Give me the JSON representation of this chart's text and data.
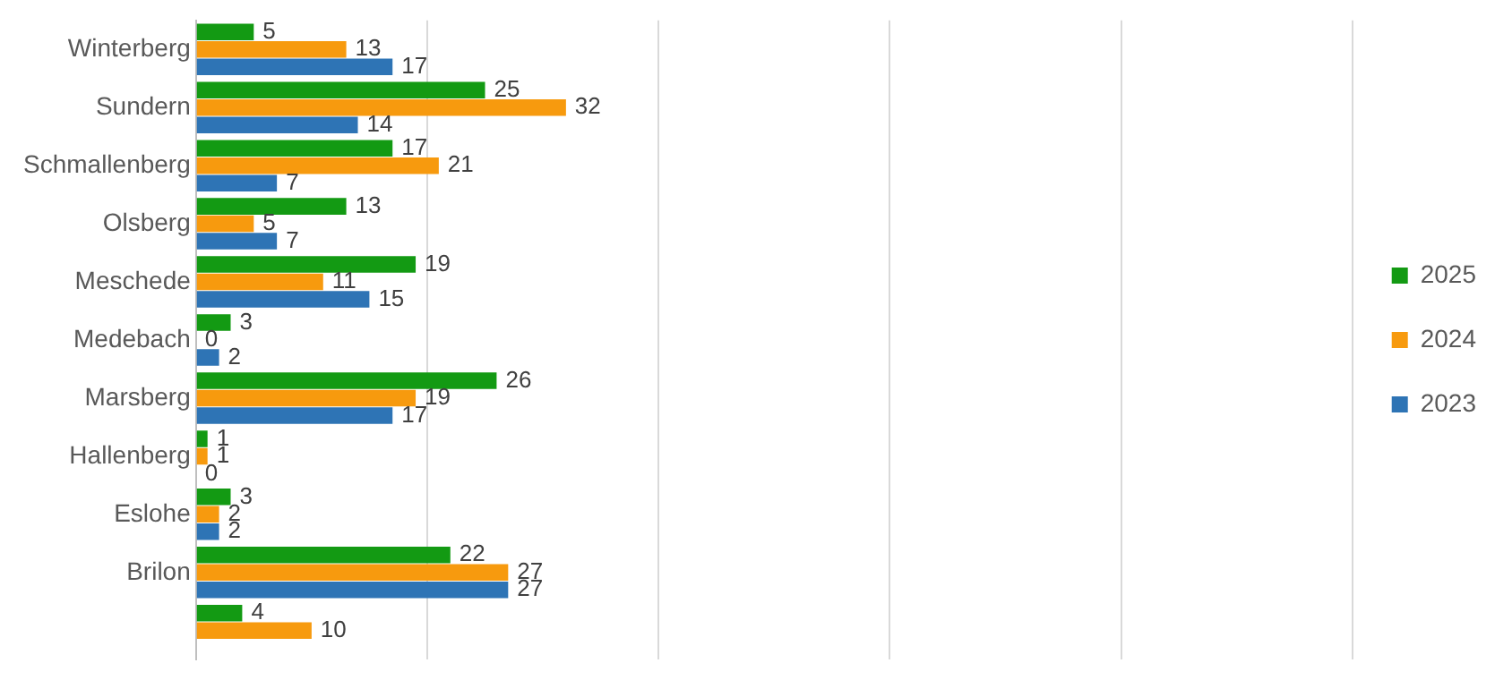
{
  "chart_data": {
    "type": "bar",
    "orientation": "horizontal",
    "categories": [
      "Winterberg",
      "Sundern",
      "Schmallenberg",
      "Olsberg",
      "Meschede",
      "Medebach",
      "Marsberg",
      "Hallenberg",
      "Eslohe",
      "Brilon",
      null
    ],
    "series": [
      {
        "name": "2025",
        "color": "#139a13",
        "values": [
          5,
          25,
          17,
          13,
          19,
          3,
          26,
          1,
          3,
          22,
          4
        ]
      },
      {
        "name": "2024",
        "color": "#f79a0e",
        "values": [
          13,
          32,
          21,
          5,
          11,
          0,
          19,
          1,
          2,
          27,
          10
        ]
      },
      {
        "name": "2023",
        "color": "#2e74b5",
        "values": [
          17,
          14,
          7,
          7,
          15,
          2,
          17,
          0,
          2,
          27,
          null
        ]
      }
    ],
    "xlim": [
      0,
      100
    ],
    "xticks": [
      {
        "value": 0,
        "label": null
      },
      {
        "value": 20,
        "label": null
      },
      {
        "value": 40,
        "label": null
      },
      {
        "value": 60,
        "label": null
      },
      {
        "value": 80,
        "label": null
      },
      {
        "value": 100,
        "label": null
      }
    ],
    "tick_labels": "y",
    "grid": "x",
    "legend": "right",
    "data_labels": true
  }
}
